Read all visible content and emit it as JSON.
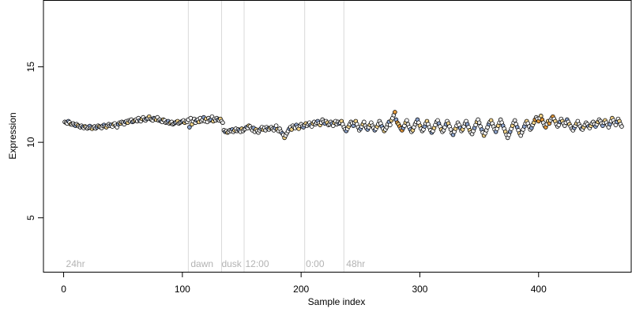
{
  "chart_data": {
    "type": "scatter",
    "title": "",
    "xlabel": "Sample index",
    "ylabel": "Expression",
    "xlim": [
      -17,
      478
    ],
    "ylim": [
      1.4,
      19.4
    ],
    "x_ticks": [
      0,
      100,
      200,
      300,
      400
    ],
    "y_ticks": [
      5,
      10,
      15
    ],
    "grid": false,
    "legend": "none",
    "colors": {
      "point_edge": "#000000",
      "point_default": "#ffffff",
      "point_light": "#e6e6e6",
      "point_blue": "#8fa6cf",
      "point_orange": "#e69a3c",
      "point_yellow": "#f5d58a",
      "divider": "#d9d9d9",
      "region_text": "#b3b3b3"
    },
    "vertical_lines": [
      105,
      133,
      152,
      203,
      236
    ],
    "region_labels": [
      {
        "text": "24hr",
        "x": 2
      },
      {
        "text": "dawn",
        "x": 107
      },
      {
        "text": "dusk",
        "x": 133
      },
      {
        "text": "12:00",
        "x": 153
      },
      {
        "text": "0:00",
        "x": 204
      },
      {
        "text": "48hr",
        "x": 238
      }
    ],
    "series": [
      {
        "x_start": 1,
        "x_step": 1,
        "values": [
          11.35,
          11.3,
          11.25,
          11.4,
          11.32,
          11.2,
          11.18,
          11.25,
          11.15,
          11.1,
          11.2,
          11.12,
          11.05,
          11.0,
          11.1,
          11.02,
          10.95,
          11.05,
          11.0,
          10.92,
          11.0,
          11.08,
          10.95,
          10.9,
          11.0,
          11.05,
          10.92,
          11.0,
          11.1,
          11.05,
          11.0,
          10.95,
          11.1,
          11.15,
          11.05,
          11.0,
          11.12,
          11.2,
          11.1,
          11.15,
          11.05,
          11.2,
          11.25,
          11.1,
          11.0,
          11.2,
          11.3,
          11.25,
          11.35,
          11.3,
          11.2,
          11.35,
          11.4,
          11.3,
          11.45,
          11.4,
          11.5,
          11.35,
          11.4,
          11.45,
          11.5,
          11.4,
          11.6,
          11.45,
          11.4,
          11.55,
          11.65,
          11.5,
          11.45,
          11.55,
          11.6,
          11.7,
          11.55,
          11.5,
          11.45,
          11.6,
          11.55,
          11.5,
          11.65,
          11.45,
          11.5,
          11.4,
          11.35,
          11.5,
          11.45,
          11.3,
          11.35,
          11.4,
          11.25,
          11.3,
          11.35,
          11.2,
          11.25,
          11.3,
          11.35,
          11.4,
          11.25,
          11.3,
          11.35,
          11.4,
          11.45,
          11.3,
          11.4,
          11.35,
          11.5,
          11.0,
          11.6,
          11.2,
          11.4,
          11.55,
          11.3,
          11.45,
          11.5,
          11.35,
          11.6,
          11.4,
          11.5,
          11.65,
          11.4,
          11.55,
          11.35,
          11.6,
          11.45,
          11.5,
          11.7,
          11.4,
          11.55,
          11.45,
          11.6,
          11.5,
          11.45,
          11.55,
          11.4,
          11.3,
          10.8,
          10.7,
          10.75,
          10.65,
          10.7,
          10.8,
          10.75,
          10.85,
          10.7,
          10.8,
          10.9,
          10.75,
          10.85,
          10.8,
          10.7,
          10.9,
          10.75,
          10.85,
          10.9,
          11.0,
          10.95,
          11.1,
          11.05,
          10.9,
          10.8,
          10.95,
          10.7,
          10.85,
          10.75,
          10.65,
          10.8,
          10.9,
          11.0,
          10.85,
          10.95,
          10.8,
          11.0,
          10.9,
          10.85,
          10.95,
          11.0,
          10.9,
          10.8,
          10.95,
          11.1,
          10.85,
          10.75,
          10.9,
          10.7,
          10.6,
          10.5,
          10.3,
          10.45,
          10.6,
          10.75,
          10.9,
          11.0,
          10.85,
          11.1,
          11.0,
          10.95,
          11.15,
          11.0,
          10.9,
          11.1,
          11.2,
          11.05,
          11.0,
          11.15,
          11.25,
          11.1,
          11.2,
          11.3,
          11.15,
          11.05,
          11.25,
          11.35,
          11.2,
          11.3,
          11.4,
          11.25,
          11.15,
          11.3,
          11.5,
          11.35,
          11.25,
          11.4,
          11.3,
          11.15,
          11.2,
          11.35,
          11.25,
          11.1,
          11.3,
          11.4,
          11.2,
          11.35,
          11.25,
          11.3,
          11.4,
          11.2,
          11.0,
          10.85,
          10.75,
          10.9,
          11.05,
          11.2,
          11.35,
          11.25,
          11.1,
          11.3,
          11.4,
          11.2,
          11.0,
          10.8,
          10.9,
          11.05,
          11.2,
          11.35,
          11.1,
          10.95,
          10.85,
          11.0,
          11.15,
          11.3,
          11.1,
          10.95,
          10.8,
          10.9,
          11.05,
          11.2,
          11.4,
          11.25,
          11.05,
          10.9,
          10.75,
          10.85,
          11.0,
          11.2,
          11.35,
          11.15,
          11.45,
          11.6,
          11.8,
          12.0,
          11.5,
          11.3,
          11.2,
          11.05,
          10.9,
          10.8,
          10.95,
          11.1,
          11.3,
          11.45,
          11.2,
          11.0,
          10.85,
          10.7,
          10.8,
          11.0,
          11.2,
          11.35,
          11.5,
          11.3,
          11.1,
          10.9,
          10.75,
          10.85,
          11.05,
          11.25,
          11.4,
          11.2,
          11.0,
          10.8,
          10.65,
          10.75,
          10.95,
          11.15,
          11.35,
          11.45,
          11.25,
          11.05,
          10.85,
          10.7,
          10.8,
          11.0,
          11.2,
          11.4,
          11.25,
          11.05,
          10.85,
          10.6,
          10.5,
          10.7,
          10.9,
          11.1,
          11.3,
          11.15,
          10.95,
          10.75,
          10.85,
          11.05,
          11.25,
          11.4,
          11.2,
          11.0,
          10.8,
          10.65,
          10.55,
          10.75,
          10.95,
          11.15,
          11.35,
          11.5,
          11.3,
          11.05,
          10.85,
          10.65,
          10.45,
          10.6,
          10.8,
          11.0,
          11.2,
          11.35,
          11.45,
          11.25,
          11.05,
          10.85,
          10.7,
          10.9,
          11.1,
          11.3,
          11.5,
          11.3,
          11.1,
          10.9,
          10.7,
          10.5,
          10.3,
          10.5,
          10.7,
          10.9,
          11.1,
          11.3,
          11.45,
          11.2,
          11.0,
          10.8,
          10.6,
          10.45,
          10.65,
          10.85,
          11.05,
          11.25,
          11.4,
          11.25,
          11.05,
          10.85,
          10.95,
          11.15,
          11.3,
          11.5,
          11.65,
          11.55,
          11.4,
          11.6,
          11.75,
          11.5,
          11.3,
          11.1,
          11.0,
          11.2,
          11.4,
          11.25,
          11.45,
          11.6,
          11.7,
          11.55,
          11.4,
          11.2,
          11.05,
          11.15,
          11.35,
          11.55,
          11.4,
          11.25,
          11.1,
          11.3,
          11.5,
          11.35,
          11.2,
          11.05,
          10.9,
          10.8,
          10.95,
          11.1,
          11.25,
          11.4,
          11.2,
          11.05,
          10.9,
          10.85,
          11.0,
          11.15,
          11.3,
          11.2,
          11.05,
          10.95,
          11.1,
          11.25,
          11.35,
          11.2,
          11.05,
          11.2,
          11.35,
          11.5,
          11.4,
          11.25,
          11.1,
          11.3,
          11.45,
          11.3,
          11.15,
          11.0,
          11.2,
          11.4,
          11.6,
          11.45,
          11.3,
          11.15,
          11.35,
          11.55,
          11.4,
          11.2,
          11.05
        ]
      }
    ]
  }
}
